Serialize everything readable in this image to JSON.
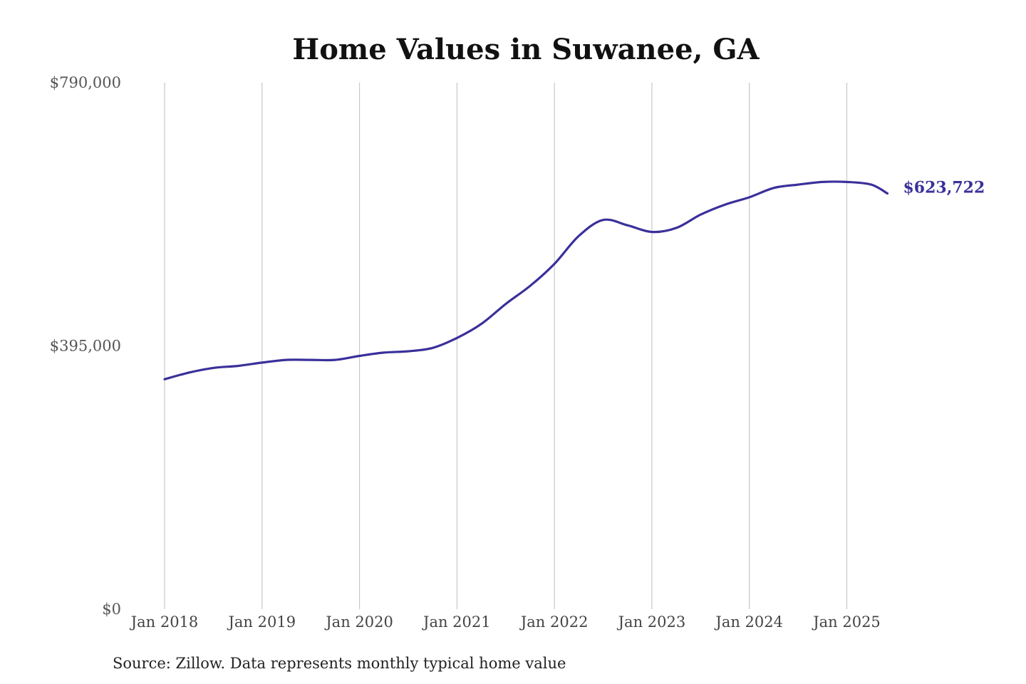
{
  "chart_data": {
    "type": "line",
    "title": "Home Values in Suwanee, GA",
    "source": "Source: Zillow. Data represents monthly typical home value",
    "ylim": [
      0,
      790000
    ],
    "yticks": [
      {
        "value": 0,
        "label": "$0"
      },
      {
        "value": 395000,
        "label": "$395,000"
      },
      {
        "value": 790000,
        "label": "$790,000"
      }
    ],
    "xticks": [
      {
        "value": 2018,
        "label": "Jan 2018"
      },
      {
        "value": 2019,
        "label": "Jan 2019"
      },
      {
        "value": 2020,
        "label": "Jan 2020"
      },
      {
        "value": 2021,
        "label": "Jan 2021"
      },
      {
        "value": 2022,
        "label": "Jan 2022"
      },
      {
        "value": 2023,
        "label": "Jan 2023"
      },
      {
        "value": 2024,
        "label": "Jan 2024"
      },
      {
        "value": 2025,
        "label": "Jan 2025"
      }
    ],
    "xlim": [
      2018,
      2025.5
    ],
    "grid": "vertical",
    "line_color": "#3a309a",
    "end_label": "$623,722",
    "series": [
      {
        "x": [
          "2018-01",
          "2018-04",
          "2018-07",
          "2018-10",
          "2019-01",
          "2019-04",
          "2019-07",
          "2019-10",
          "2020-01",
          "2020-04",
          "2020-07",
          "2020-10",
          "2021-01",
          "2021-04",
          "2021-07",
          "2021-10",
          "2022-01",
          "2022-04",
          "2022-07",
          "2022-10",
          "2023-01",
          "2023-04",
          "2023-07",
          "2023-10",
          "2024-01",
          "2024-04",
          "2024-07",
          "2024-10",
          "2025-01",
          "2025-04",
          "2025-06"
        ],
        "y": [
          345000,
          355000,
          362000,
          365000,
          370000,
          374000,
          374000,
          374000,
          380000,
          385000,
          387000,
          392000,
          407000,
          428000,
          458000,
          485000,
          518000,
          560000,
          584000,
          576000,
          566000,
          572000,
          592000,
          607000,
          618000,
          632000,
          637000,
          641000,
          641000,
          637000,
          623722
        ]
      }
    ]
  }
}
